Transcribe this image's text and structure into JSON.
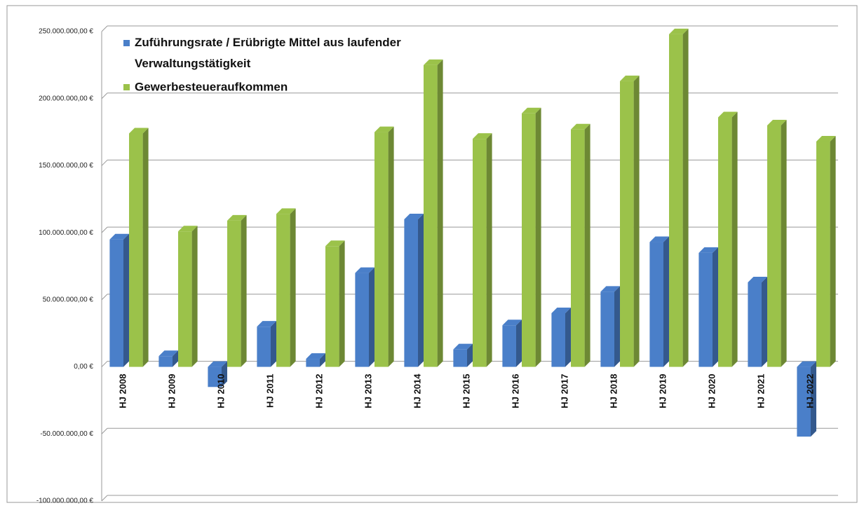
{
  "chart_data": {
    "type": "bar3d",
    "categories": [
      "HJ 2008",
      "HJ 2009",
      "HJ 2010",
      "HJ 2011",
      "HJ 2012",
      "HJ 2013",
      "HJ 2014",
      "HJ 2015",
      "HJ 2016",
      "HJ 2017",
      "HJ 2018",
      "HJ 2019",
      "HJ 2020",
      "HJ 2021",
      "HJ 2022"
    ],
    "series": [
      {
        "name": "Zuführungsrate / Erübrigte Mittel aus laufender Verwaltungstätigkeit",
        "color": "#4a7fc9",
        "values": [
          95000000,
          8000000,
          -15000000,
          30000000,
          6000000,
          70000000,
          110000000,
          13000000,
          31000000,
          40000000,
          56000000,
          93000000,
          85000000,
          63000000,
          -52000000
        ]
      },
      {
        "name": "Gewerbesteueraufkommen",
        "color": "#9bc24a",
        "values": [
          174000000,
          101000000,
          109000000,
          114000000,
          90000000,
          175000000,
          225000000,
          170000000,
          189000000,
          177000000,
          213000000,
          248000000,
          186000000,
          180000000,
          168000000
        ]
      }
    ],
    "ylim": [
      -100000000,
      250000000
    ],
    "yticks": [
      {
        "value": -100000000,
        "label": "-100.000.000,00 €"
      },
      {
        "value": -50000000,
        "label": "-50.000.000,00 €"
      },
      {
        "value": 0,
        "label": "0,00 €"
      },
      {
        "value": 50000000,
        "label": "50.000.000,00 €"
      },
      {
        "value": 100000000,
        "label": "100.000.000,00 €"
      },
      {
        "value": 150000000,
        "label": "150.000.000,00 €"
      },
      {
        "value": 200000000,
        "label": "200.000.000,00 €"
      },
      {
        "value": 250000000,
        "label": "250.000.000,00 €"
      }
    ],
    "grid": true,
    "legend": "top-left"
  }
}
